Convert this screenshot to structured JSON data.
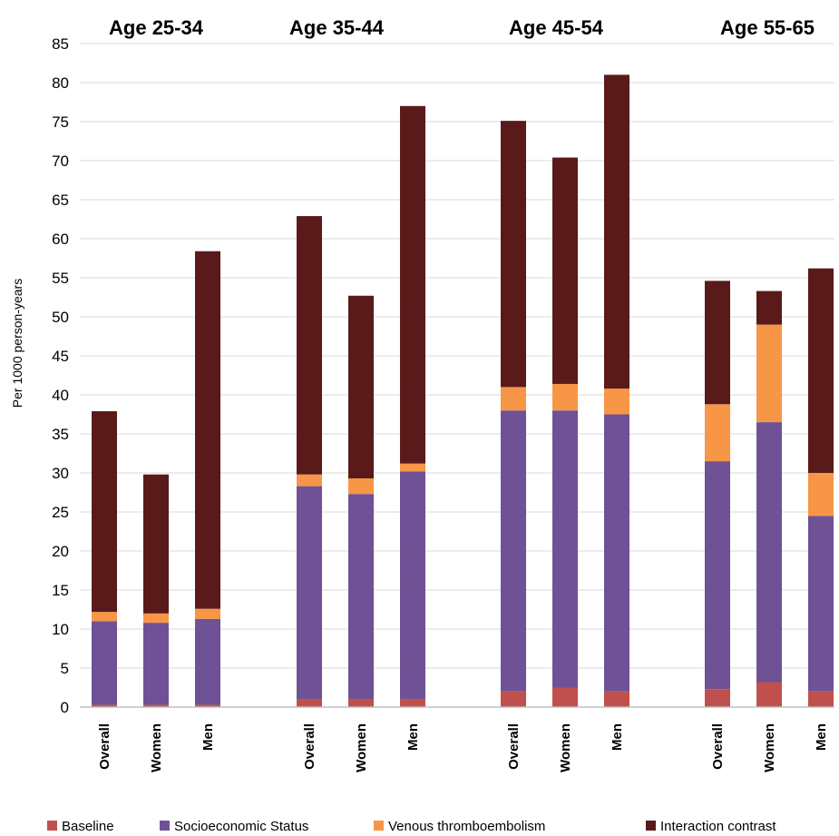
{
  "chart_data": {
    "type": "bar",
    "stacked": true,
    "ylabel": "Per 1000 person-years",
    "ylim": [
      0,
      85
    ],
    "yticks": [
      0,
      5,
      10,
      15,
      20,
      25,
      30,
      35,
      40,
      45,
      50,
      55,
      60,
      65,
      70,
      75,
      80,
      85
    ],
    "grid": true,
    "legend_position": "bottom",
    "groups": [
      {
        "title": "Age 25-34",
        "categories": [
          "Overall",
          "Women",
          "Men"
        ]
      },
      {
        "title": "Age 35-44",
        "categories": [
          "Overall",
          "Women",
          "Men"
        ]
      },
      {
        "title": "Age 45-54",
        "categories": [
          "Overall",
          "Women",
          "Men"
        ]
      },
      {
        "title": "Age 55-65",
        "categories": [
          "Overall",
          "Women",
          "Men"
        ]
      }
    ],
    "series": [
      {
        "name": "Baseline",
        "color": "#c0504d",
        "values": [
          0.3,
          0.3,
          0.3,
          1.0,
          1.0,
          1.0,
          2.0,
          2.5,
          2.0,
          2.3,
          3.2,
          2.0
        ]
      },
      {
        "name": "Socioeconomic Status",
        "color": "#6f5195",
        "values": [
          10.7,
          10.5,
          11.0,
          27.3,
          26.3,
          29.2,
          36.0,
          35.5,
          35.5,
          29.2,
          33.3,
          22.5
        ]
      },
      {
        "name": "Venous thromboembolism",
        "color": "#f79646",
        "values": [
          1.2,
          1.2,
          1.3,
          1.5,
          2.0,
          1.0,
          3.0,
          3.4,
          3.3,
          7.3,
          12.5,
          5.5
        ]
      },
      {
        "name": "Interaction contrast",
        "color": "#5a1a1a",
        "values": [
          25.7,
          17.8,
          45.8,
          33.1,
          23.4,
          45.8,
          34.1,
          29.0,
          40.2,
          15.8,
          4.3,
          26.2
        ]
      }
    ]
  }
}
